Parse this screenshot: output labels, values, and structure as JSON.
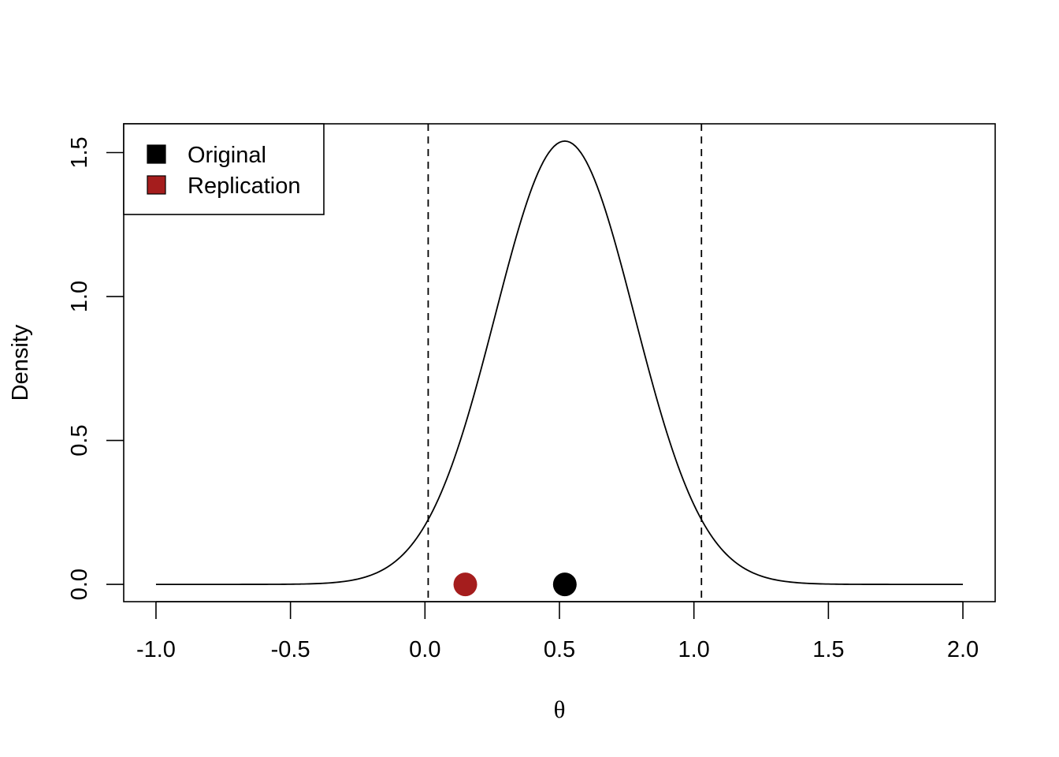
{
  "chart_data": {
    "type": "line",
    "title": "",
    "xlabel": "θ",
    "ylabel": "Density",
    "xlim": [
      -1.12,
      2.12
    ],
    "ylim": [
      -0.06,
      1.6
    ],
    "x_ticks": [
      -1.0,
      -0.5,
      0.0,
      0.5,
      1.0,
      1.5,
      2.0
    ],
    "x_tick_labels": [
      "-1.0",
      "-0.5",
      "0.0",
      "0.5",
      "1.0",
      "1.5",
      "2.0"
    ],
    "y_ticks": [
      0.0,
      0.5,
      1.0,
      1.5
    ],
    "y_tick_labels": [
      "0.0",
      "0.5",
      "1.0",
      "1.5"
    ],
    "grid": false,
    "density_curve": {
      "type": "normal",
      "mean": 0.52,
      "sd": 0.259,
      "x_range": [
        -1.0,
        2.0
      ],
      "peak_density": 1.54,
      "color": "#000000"
    },
    "vertical_lines": [
      {
        "x": 0.012,
        "style": "dashed",
        "color": "#000000"
      },
      {
        "x": 1.028,
        "style": "dashed",
        "color": "#000000"
      }
    ],
    "points": [
      {
        "name": "Original",
        "x": 0.52,
        "y": 0.0,
        "color": "#000000"
      },
      {
        "name": "Replication",
        "x": 0.15,
        "y": 0.0,
        "color": "#a51d1d"
      }
    ],
    "legend": {
      "position": "top-left",
      "entries": [
        {
          "label": "Original",
          "color": "#000000"
        },
        {
          "label": "Replication",
          "color": "#a51d1d"
        }
      ]
    }
  }
}
